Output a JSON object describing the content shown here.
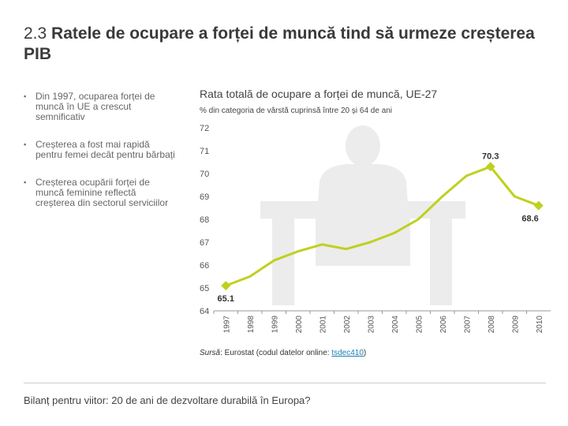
{
  "header": {
    "number": "2.3",
    "title": "Ratele de ocupare a forței de muncă tind să urmeze creșterea PIB"
  },
  "bullets": [
    "Din 1997, ocuparea forței de muncă în UE a crescut semnificativ",
    "Creșterea a fost mai rapidă pentru femei decât pentru bărbați",
    "Creșterea ocupării forței de muncă feminine reflectă creșterea din sectorul serviciilor"
  ],
  "chart_data": {
    "type": "line",
    "title": "Rata totală de ocupare a forței de muncă, UE-27",
    "subtitle": "% din categoria de vârstă cuprinsă între 20 și 64 de ani",
    "categories": [
      "1997",
      "1998",
      "1999",
      "2000",
      "2001",
      "2002",
      "2003",
      "2004",
      "2005",
      "2006",
      "2007",
      "2008",
      "2009",
      "2010"
    ],
    "series": [
      {
        "color": "#bfd01f",
        "values": [
          65.1,
          65.5,
          66.2,
          66.6,
          66.9,
          66.7,
          67.0,
          67.4,
          68.0,
          69.0,
          69.9,
          70.3,
          69.0,
          68.6
        ],
        "value_labels": [
          "65.1",
          null,
          null,
          null,
          null,
          null,
          null,
          null,
          null,
          null,
          null,
          "70.3",
          null,
          "68.6"
        ]
      }
    ],
    "ylim": [
      64,
      72
    ],
    "yticks": [
      64,
      65,
      66,
      67,
      68,
      69,
      70,
      71,
      72
    ],
    "grid": false
  },
  "source": {
    "label": "Sursă",
    "text": ": Eurostat (codul datelor online: ",
    "code": "tsdec410",
    "suffix": ")"
  },
  "footer": "Bilanț pentru viitor: 20 de ani de dezvoltare durabilă în Europa?"
}
